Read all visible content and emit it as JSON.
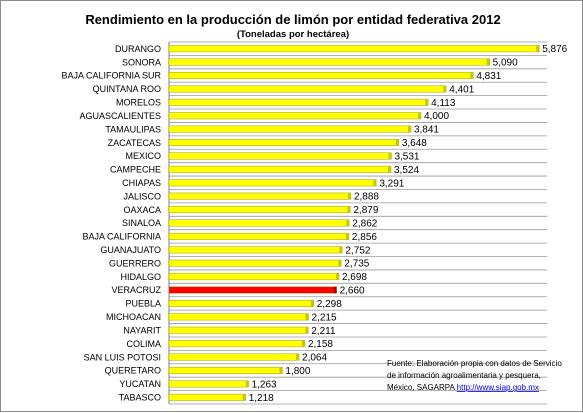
{
  "chart_data": {
    "type": "bar",
    "orientation": "horizontal",
    "title": "Rendimiento en la producción de limón por entidad federativa 2012",
    "subtitle": "(Toneladas por hectárea)",
    "categories": [
      "DURANGO",
      "SONORA",
      "BAJA CALIFORNIA SUR",
      "QUINTANA ROO",
      "MORELOS",
      "AGUASCALIENTES",
      "TAMAULIPAS",
      "ZACATECAS",
      "MEXICO",
      "CAMPECHE",
      "CHIAPAS",
      "JALISCO",
      "OAXACA",
      "SINALOA",
      "BAJA CALIFORNIA",
      "GUANAJUATO",
      "GUERRERO",
      "HIDALGO",
      "VERACRUZ",
      "PUEBLA",
      "MICHOACAN",
      "NAYARIT",
      "COLIMA",
      "SAN LUIS POTOSI",
      "QUERETARO",
      "YUCATAN",
      "TABASCO"
    ],
    "values": [
      5.876,
      5.09,
      4.831,
      4.401,
      4.113,
      4.0,
      3.841,
      3.648,
      3.531,
      3.524,
      3.291,
      2.888,
      2.879,
      2.862,
      2.856,
      2.752,
      2.735,
      2.698,
      2.66,
      2.298,
      2.215,
      2.211,
      2.158,
      2.064,
      1.8,
      1.263,
      1.218
    ],
    "value_labels": [
      "5,876",
      "5,090",
      "4,831",
      "4,401",
      "4,113",
      "4,000",
      "3,841",
      "3,648",
      "3,531",
      "3,524",
      "3,291",
      "2,888",
      "2,879",
      "2,862",
      "2,856",
      "2,752",
      "2,735",
      "2,698",
      "2,660",
      "2,298",
      "2,215",
      "2,211",
      "2,158",
      "2,064",
      "1,800",
      "1,263",
      "1,218"
    ],
    "xlim": [
      0,
      6
    ],
    "highlight": "VERACRUZ",
    "colors": {
      "bar": "#ffff00",
      "highlight": "#ff0000",
      "gridline": "#9a9a9a"
    },
    "grid": true,
    "legend": "none"
  },
  "source": {
    "line1": "Fuente:  Elaboración  propia con datos de Servicio",
    "line2": "de  información  agroalimentaria   y pesquera,",
    "line3": "México, SAGARPA",
    "link": "http://www.siap.gob.mx"
  }
}
